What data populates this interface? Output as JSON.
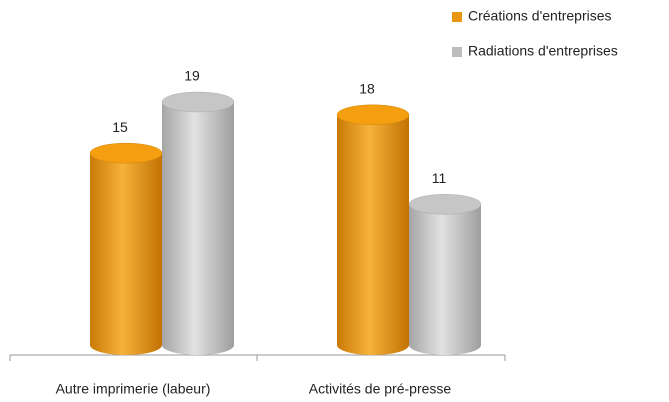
{
  "chart_data": {
    "type": "bar",
    "categories": [
      "Autre imprimerie (labeur)",
      "Activités de pré-presse"
    ],
    "series": [
      {
        "name": "Créations d'entreprises",
        "color": "#e8960f",
        "values": [
          15,
          18
        ]
      },
      {
        "name": "Radiations d'entreprises",
        "color": "#bdbdbd",
        "values": [
          19,
          11
        ]
      }
    ],
    "legend": "top-right",
    "grid": false
  }
}
